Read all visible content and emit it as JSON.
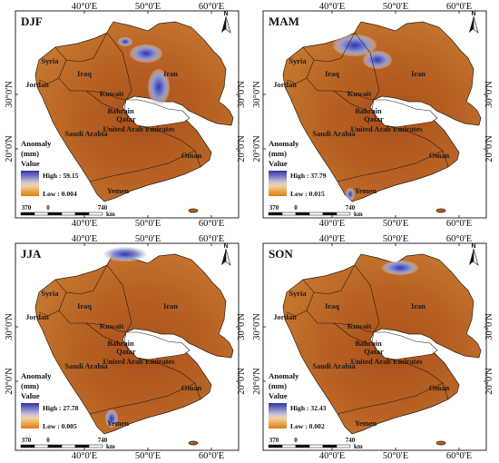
{
  "axis_labels": {
    "top_lon": [
      "40°0'E",
      "50°0'E",
      "60°0'E"
    ],
    "bottom_lon": [
      "40°0'E",
      "50°0'E",
      "60°0'E"
    ],
    "left_lat": [
      "30°0'N",
      "20°0'N"
    ],
    "right_lat": [
      "30°0'N",
      "20°0'N"
    ]
  },
  "countries": [
    "Syria",
    "Iraq",
    "Jordan",
    "Kuwait",
    "Iran",
    "Bahrain",
    "Qatar",
    "Saudi Arabia",
    "United Arab Emirates",
    "Oman",
    "Yemen"
  ],
  "legend": {
    "title_line1": "Anomaly",
    "title_line2": "(mm)",
    "title_line3": "Value"
  },
  "scalebar": {
    "labels": [
      "370",
      "0",
      "740"
    ],
    "unit": "km"
  },
  "north_label": "N",
  "colors": {
    "high": "#3a3fb8",
    "mid": "#e8dfd6",
    "low_land": "#b8641f",
    "dark_land": "#8a3f0c",
    "light_land": "#d69a3c"
  },
  "panels": [
    {
      "season": "DJF",
      "high": "High : 59.15",
      "low": "Low : 0.004"
    },
    {
      "season": "MAM",
      "high": "High : 37.79",
      "low": "Low : 0.015"
    },
    {
      "season": "JJA",
      "high": "High : 27.78",
      "low": "Low : 0.005"
    },
    {
      "season": "SON",
      "high": "High : 32.43",
      "low": "Low : 0.002"
    }
  ]
}
